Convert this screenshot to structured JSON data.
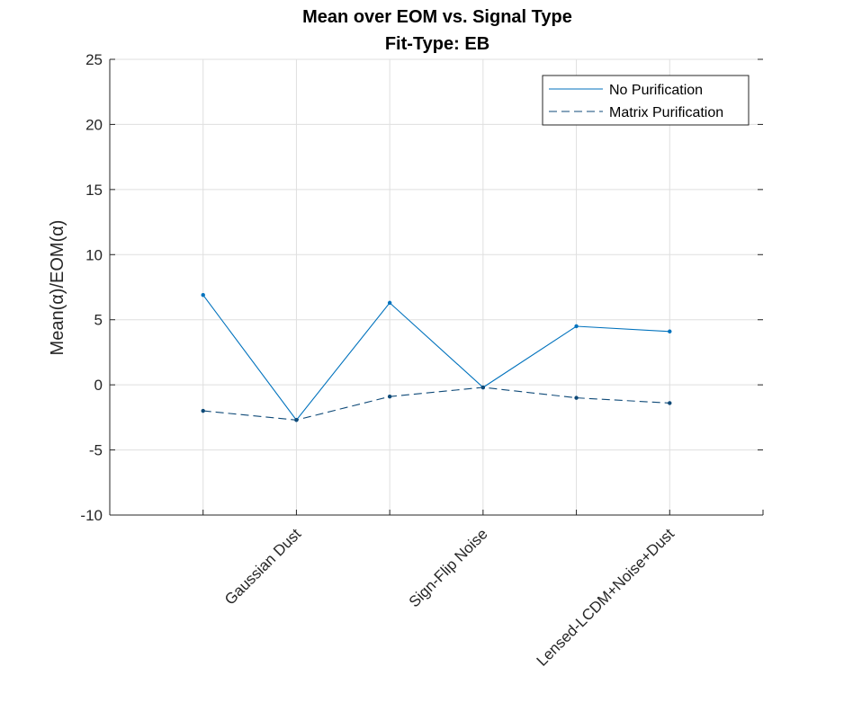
{
  "chart_data": {
    "type": "line",
    "title": "Mean over EOM vs. Signal Type",
    "subtitle": "Fit-Type: EB",
    "ylabel": "Mean(α)/EOM(α)",
    "xlabel": "",
    "ylim": [
      -10,
      25
    ],
    "yticks": [
      -10,
      -5,
      0,
      5,
      10,
      15,
      20,
      25
    ],
    "ytick_labels": [
      "-10",
      "-5",
      "0",
      "5",
      "10",
      "15",
      "20",
      "25"
    ],
    "xlim": [
      0,
      7
    ],
    "x": [
      1,
      2,
      3,
      4,
      5,
      6
    ],
    "xtick_labels": [
      {
        "x": 2,
        "label": "Gaussian Dust"
      },
      {
        "x": 4,
        "label": "Sign-Flip Noise"
      },
      {
        "x": 6,
        "label": "Lensed-LCDM+Noise+Dust"
      }
    ],
    "grid": true,
    "legend_position": "top-right",
    "series": [
      {
        "name": "No Purification",
        "style": "solid",
        "color": "#0072BD",
        "values": [
          6.9,
          -2.7,
          6.3,
          -0.2,
          4.5,
          4.1
        ]
      },
      {
        "name": "Matrix Purification",
        "style": "dashed",
        "color": "#0F4A78",
        "values": [
          -2.0,
          -2.7,
          -0.9,
          -0.2,
          -1.0,
          -1.4
        ]
      }
    ]
  }
}
